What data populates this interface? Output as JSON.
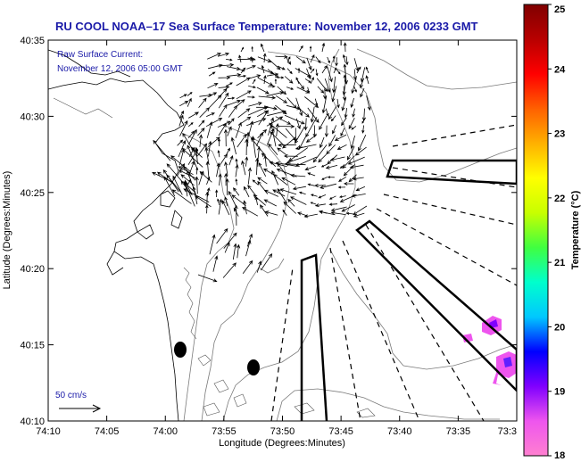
{
  "title": "RU COOL  NOAA–17  Sea Surface Temperature:  November 12, 2006 0233 GMT",
  "annotation": {
    "line1": "Raw Surface Current:",
    "line2": "November 12, 2006 05:00 GMT"
  },
  "scale_label": "50 cm/s",
  "axes": {
    "xlabel": "Longitude (Degrees:Minutes)",
    "ylabel": "Latitude (Degrees:Minutes)",
    "xticks": [
      "74:10",
      "74:05",
      "74:00",
      "73:55",
      "73:50",
      "73:45",
      "73:40",
      "73:35",
      "73:3"
    ],
    "yticks": [
      "40:35",
      "40:30",
      "40:25",
      "40:20",
      "40:15",
      "40:10"
    ]
  },
  "colorbar": {
    "label": "Temperature (°C)",
    "ticks": [
      "25",
      "24",
      "23",
      "22",
      "21",
      "20",
      "19",
      "18"
    ],
    "min": 18,
    "max": 25,
    "colors": [
      "#ff80d0",
      "#ee55ee",
      "#8000ff",
      "#0000ff",
      "#00c8ff",
      "#00ffcc",
      "#40ff40",
      "#c8ff00",
      "#ffff00",
      "#ffb000",
      "#ff6000",
      "#ff0000",
      "#b80000",
      "#800000"
    ]
  },
  "map_data": {
    "type": "map",
    "projection": "lon-lat",
    "xlim": [
      -74.1667,
      -73.5
    ],
    "ylim": [
      40.1667,
      40.5833
    ],
    "features": [
      "coastline",
      "bathymetry contours",
      "surface current vectors",
      "HF radar coverage boundaries"
    ]
  }
}
